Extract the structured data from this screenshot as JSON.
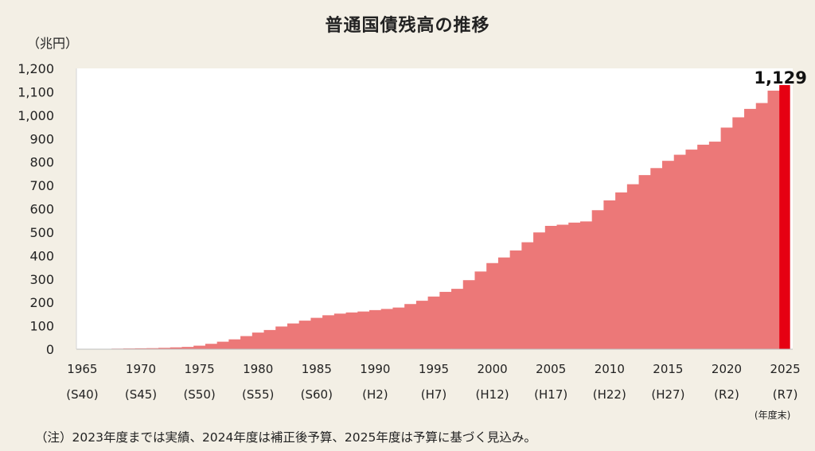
{
  "title": "普通国債残高の推移",
  "unit": "（兆円）",
  "footnote": "（注）2023年度までは実績、2024年度は補正後予算、2025年度は予算に基づく見込み。",
  "colors": {
    "bar": "#ec7878",
    "highlight": "#e60012",
    "plot_bg": "#ffffff",
    "page_bg": "#f3efe5"
  },
  "chart_data": {
    "type": "bar",
    "ylim": [
      0,
      1200
    ],
    "y_ticks": [
      "0",
      "100",
      "200",
      "300",
      "400",
      "500",
      "600",
      "700",
      "800",
      "900",
      "1,000",
      "1,100",
      "1,200"
    ],
    "x_ticks": [
      "1965",
      "1970",
      "1975",
      "1980",
      "1985",
      "1990",
      "1995",
      "2000",
      "2005",
      "2010",
      "2015",
      "2020",
      "2025"
    ],
    "era_ticks": [
      "(S40)",
      "(S45)",
      "(S50)",
      "(S55)",
      "(S60)",
      "(H2)",
      "(H7)",
      "(H12)",
      "(H17)",
      "(H22)",
      "(H27)",
      "(R2)",
      "(R7)"
    ],
    "x_suffix": "(年度末)",
    "highlight_label": "1,129",
    "categories": [
      1965,
      1966,
      1967,
      1968,
      1969,
      1970,
      1971,
      1972,
      1973,
      1974,
      1975,
      1976,
      1977,
      1978,
      1979,
      1980,
      1981,
      1982,
      1983,
      1984,
      1985,
      1986,
      1987,
      1988,
      1989,
      1990,
      1991,
      1992,
      1993,
      1994,
      1995,
      1996,
      1997,
      1998,
      1999,
      2000,
      2001,
      2002,
      2003,
      2004,
      2005,
      2006,
      2007,
      2008,
      2009,
      2010,
      2011,
      2012,
      2013,
      2014,
      2015,
      2016,
      2017,
      2018,
      2019,
      2020,
      2021,
      2022,
      2023,
      2024,
      2025
    ],
    "values": [
      0.2,
      0.6,
      1.5,
      2.4,
      3.1,
      3.8,
      4.4,
      5.8,
      7.8,
      9.7,
      15,
      23,
      32,
      42,
      56,
      71,
      82,
      97,
      110,
      122,
      134,
      145,
      152,
      157,
      161,
      167,
      172,
      178,
      193,
      207,
      225,
      245,
      258,
      295,
      332,
      368,
      392,
      422,
      457,
      499,
      527,
      532,
      541,
      546,
      594,
      636,
      670,
      705,
      744,
      774,
      805,
      831,
      853,
      874,
      887,
      947,
      991,
      1027,
      1052,
      1105,
      1129
    ],
    "highlight_index": 60
  }
}
